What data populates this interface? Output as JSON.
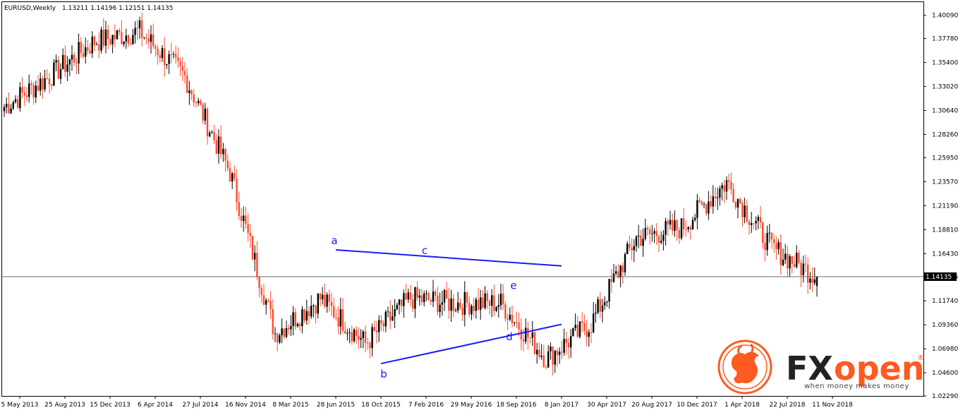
{
  "header": {
    "symbol": "EURUSD,Weekly",
    "ohlc": "1.13211 1.14196 1.12151 1.14135"
  },
  "price_tag": "1.14135",
  "x_labels": [
    "5 May 2013",
    "25 Aug 2013",
    "15 Dec 2013",
    "6 Apr 2014",
    "27 Jul 2014",
    "16 Nov 2014",
    "8 Mar 2015",
    "28 Jun 2015",
    "18 Oct 2015",
    "7 Feb 2016",
    "29 May 2016",
    "18 Sep 2016",
    "8 Jan 2017",
    "30 Apr 2017",
    "20 Aug 2017",
    "10 Dec 2017",
    "1 Apr 2018",
    "22 Jul 2018",
    "11 Nov 2018"
  ],
  "y_labels": [
    "1.40090",
    "1.37780",
    "1.35400",
    "1.33020",
    "1.30640",
    "1.28260",
    "1.25950",
    "1.23570",
    "1.21190",
    "1.18810",
    "1.16430",
    "1.14135",
    "1.11740",
    "1.09360",
    "1.06980",
    "1.04600",
    "1.02290"
  ],
  "wave_labels": {
    "a": "a",
    "b": "b",
    "c": "c",
    "d": "d",
    "e": "e"
  },
  "logo": {
    "brand_fx": "FX",
    "brand_open": "open",
    "registered": "®",
    "tagline": "when money makes money"
  },
  "colors": {
    "bull": "#000000",
    "bear": "#ff4a2a",
    "wave": "#1a1aff",
    "grid": "#000000",
    "logo_orange": "#ff5a1f"
  },
  "chart_data": {
    "type": "candlestick",
    "title": "EURUSD,Weekly",
    "timeframe": "Weekly",
    "last_ohlc": {
      "open": 1.13211,
      "high": 1.14196,
      "low": 1.12151,
      "close": 1.14135
    },
    "ylim": [
      1.0229,
      1.414
    ],
    "x_ticks": [
      "5 May 2013",
      "25 Aug 2013",
      "15 Dec 2013",
      "6 Apr 2014",
      "27 Jul 2014",
      "16 Nov 2014",
      "8 Mar 2015",
      "28 Jun 2015",
      "18 Oct 2015",
      "7 Feb 2016",
      "29 May 2016",
      "18 Sep 2016",
      "8 Jan 2017",
      "30 Apr 2017",
      "20 Aug 2017",
      "10 Dec 2017",
      "1 Apr 2018",
      "22 Jul 2018",
      "11 Nov 2018"
    ],
    "y_ticks": [
      1.4009,
      1.3778,
      1.354,
      1.3302,
      1.3064,
      1.2826,
      1.2595,
      1.2357,
      1.2119,
      1.1881,
      1.1643,
      1.14135,
      1.1174,
      1.0936,
      1.0698,
      1.046,
      1.0229
    ],
    "current_price_line": 1.14135,
    "close_series_anchors": [
      {
        "date": "5 May 2013",
        "close": 1.31
      },
      {
        "date": "25 Aug 2013",
        "close": 1.34
      },
      {
        "date": "15 Dec 2013",
        "close": 1.375
      },
      {
        "date": "6 Apr 2014",
        "close": 1.385
      },
      {
        "date": "27 Jul 2014",
        "close": 1.34
      },
      {
        "date": "16 Nov 2014",
        "close": 1.245
      },
      {
        "date": "8 Mar 2015",
        "close": 1.085
      },
      {
        "date": "28 Jun 2015",
        "close": 1.12
      },
      {
        "date": "18 Oct 2015",
        "close": 1.075
      },
      {
        "date": "7 Feb 2016",
        "close": 1.12
      },
      {
        "date": "29 May 2016",
        "close": 1.115
      },
      {
        "date": "18 Sep 2016",
        "close": 1.115
      },
      {
        "date": "8 Jan 2017",
        "close": 1.06
      },
      {
        "date": "30 Apr 2017",
        "close": 1.095
      },
      {
        "date": "20 Aug 2017",
        "close": 1.18
      },
      {
        "date": "10 Dec 2017",
        "close": 1.19
      },
      {
        "date": "1 Apr 2018",
        "close": 1.235
      },
      {
        "date": "22 Jul 2018",
        "close": 1.17
      },
      {
        "date": "11 Nov 2018",
        "close": 1.14135
      }
    ],
    "annotations": [
      {
        "label": "a",
        "date": "28 Jun 2015",
        "price": 1.168
      },
      {
        "label": "b",
        "date": "18 Oct 2015",
        "price": 1.055
      },
      {
        "label": "c",
        "date": "7 Feb 2016",
        "price": 1.161
      },
      {
        "label": "d",
        "date": "18 Sep 2016",
        "price": 1.088
      },
      {
        "label": "e",
        "date": "18 Sep 2016",
        "price": 1.132
      }
    ],
    "trendlines": [
      {
        "name": "upper",
        "from": {
          "date": "28 Jun 2015",
          "price": 1.168
        },
        "to": {
          "date": "8 Jan 2017",
          "price": 1.152
        }
      },
      {
        "name": "lower",
        "from": {
          "date": "18 Oct 2015",
          "price": 1.055
        },
        "to": {
          "date": "8 Jan 2017",
          "price": 1.094
        }
      }
    ]
  }
}
